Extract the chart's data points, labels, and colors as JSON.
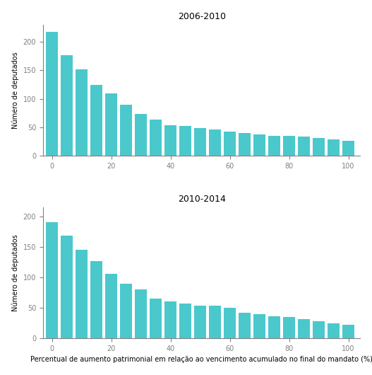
{
  "title1": "2006-2010",
  "title2": "2010-2014",
  "ylabel": "Número de deputados",
  "xlabel": "Percentual de aumento patrimonial em relação ao vencimento acumulado no final do mandato (%)",
  "bar_color": "#4bc8cc",
  "bar_width": 4.2,
  "x_positions": [
    0,
    5,
    10,
    15,
    20,
    25,
    30,
    35,
    40,
    45,
    50,
    55,
    60,
    65,
    70,
    75,
    80,
    85,
    90,
    95,
    100
  ],
  "values1": [
    217,
    177,
    152,
    125,
    110,
    90,
    74,
    63,
    54,
    52,
    49,
    46,
    42,
    40,
    38,
    35,
    35,
    34,
    31,
    29,
    26
  ],
  "values2": [
    190,
    168,
    145,
    127,
    106,
    89,
    80,
    65,
    60,
    57,
    54,
    53,
    50,
    42,
    40,
    36,
    35,
    32,
    28,
    25,
    22
  ],
  "xlim": [
    -3,
    104
  ],
  "xticks": [
    0,
    20,
    40,
    60,
    80,
    100
  ],
  "ylim1": [
    0,
    230
  ],
  "ylim2": [
    0,
    215
  ],
  "yticks1": [
    0,
    50,
    100,
    150,
    200
  ],
  "yticks2": [
    0,
    50,
    100,
    150,
    200
  ],
  "title_fontsize": 9,
  "label_fontsize": 7,
  "tick_fontsize": 7,
  "xlabel_fontsize": 7
}
